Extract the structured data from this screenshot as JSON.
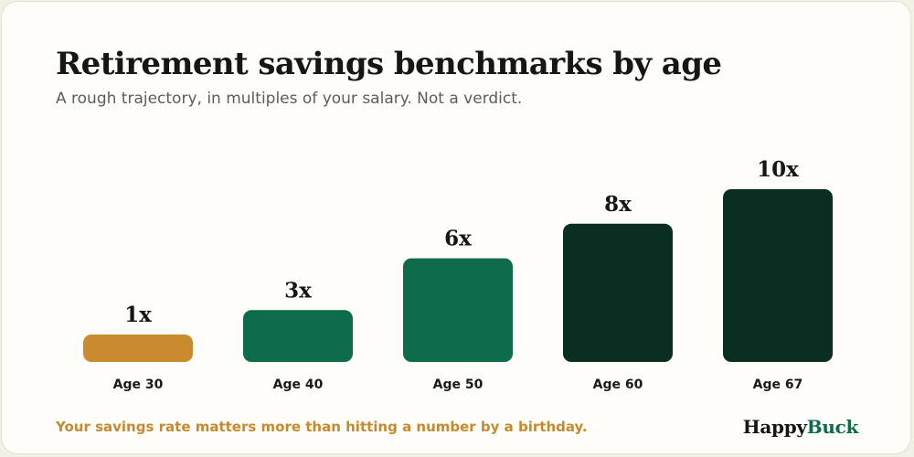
{
  "title": "Retirement savings benchmarks by age",
  "subtitle": "A rough trajectory, in multiples of your salary. Not a verdict.",
  "footnote": "Your savings rate matters more than hitting a number by a birthday.",
  "logo": {
    "part1": "Happy",
    "part2": "Buck"
  },
  "colors": {
    "gold": "#c98b2e",
    "green": "#0e6b4c",
    "dark": "#0b2e22",
    "text": "#161616",
    "muted": "#5c5c5c",
    "footnote": "#c68a2e"
  },
  "chart_data": {
    "type": "bar",
    "title": "Retirement savings benchmarks by age",
    "subtitle": "A rough trajectory, in multiples of your salary. Not a verdict.",
    "categories": [
      "Age 30",
      "Age 40",
      "Age 50",
      "Age 60",
      "Age 67"
    ],
    "values": [
      1,
      3,
      6,
      8,
      10
    ],
    "value_labels": [
      "1x",
      "3x",
      "6x",
      "8x",
      "10x"
    ],
    "bar_colors": [
      "gold",
      "green",
      "green",
      "dark",
      "dark"
    ],
    "ylim": [
      0,
      10
    ],
    "grid": false,
    "legend": false
  }
}
